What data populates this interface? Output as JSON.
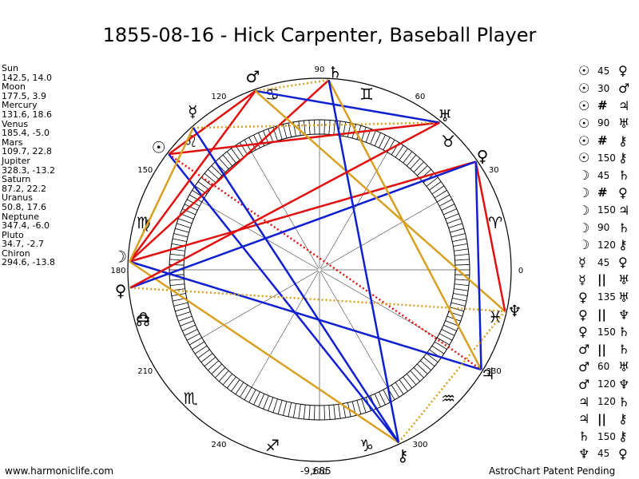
{
  "title": "1855-08-16 - Hick Carpenter, Baseball Player",
  "planets": [
    {
      "name": "Sun",
      "values": "142.5, 14.0",
      "glyph": "☉",
      "lon": 142.5
    },
    {
      "name": "Moon",
      "values": "177.5, 3.9",
      "glyph": "☽",
      "lon": 177.5
    },
    {
      "name": "Mercury",
      "values": "131.6, 18.6",
      "glyph": "☿",
      "lon": 131.6
    },
    {
      "name": "Venus",
      "values": "185.4, -5.0",
      "glyph": "♀",
      "lon": 185.4
    },
    {
      "name": "Mars",
      "values": "109.7, 22.8",
      "glyph": "♂",
      "lon": 109.7
    },
    {
      "name": "Jupiter",
      "values": "328.3, -13.2",
      "glyph": "♃",
      "lon": 328.3
    },
    {
      "name": "Saturn",
      "values": "87.2, 22.2",
      "glyph": "♄",
      "lon": 87.2
    },
    {
      "name": "Uranus",
      "values": "50.8, 17.6",
      "glyph": "♅",
      "lon": 50.8
    },
    {
      "name": "Neptune",
      "values": "347.4, -6.0",
      "glyph": "♆",
      "lon": 347.4
    },
    {
      "name": "Pluto",
      "values": "34.7, -2.7",
      "glyph": "♀",
      "lon": 34.7
    },
    {
      "name": "Chiron",
      "values": "294.6, -13.8",
      "glyph": "⚷",
      "lon": 294.6
    }
  ],
  "aspects": [
    {
      "p1": "☉",
      "label": "45",
      "p2": "♀"
    },
    {
      "p1": "☉",
      "label": "30",
      "p2": "♂"
    },
    {
      "p1": "☉",
      "label": "#",
      "p2": "♃"
    },
    {
      "p1": "☉",
      "label": "90",
      "p2": "♅"
    },
    {
      "p1": "☉",
      "label": "#",
      "p2": "⚷"
    },
    {
      "p1": "☉",
      "label": "150",
      "p2": "⚷"
    },
    {
      "p1": "☽",
      "label": "45",
      "p2": "♄"
    },
    {
      "p1": "☽",
      "label": "#",
      "p2": "♀"
    },
    {
      "p1": "☽",
      "label": "150",
      "p2": "♃"
    },
    {
      "p1": "☽",
      "label": "90",
      "p2": "♄"
    },
    {
      "p1": "☽",
      "label": "120",
      "p2": "⚷"
    },
    {
      "p1": "☿",
      "label": "45",
      "p2": "♀"
    },
    {
      "p1": "☿",
      "label": "||",
      "p2": "♅"
    },
    {
      "p1": "♀",
      "label": "135",
      "p2": "♅"
    },
    {
      "p1": "♀",
      "label": "||",
      "p2": "♆"
    },
    {
      "p1": "♀",
      "label": "150",
      "p2": "♄"
    },
    {
      "p1": "♂",
      "label": "||",
      "p2": "♄"
    },
    {
      "p1": "♂",
      "label": "60",
      "p2": "♅"
    },
    {
      "p1": "♂",
      "label": "120",
      "p2": "♆"
    },
    {
      "p1": "♃",
      "label": "120",
      "p2": "♄"
    },
    {
      "p1": "♃",
      "label": "||",
      "p2": "⚷"
    },
    {
      "p1": "♄",
      "label": "150",
      "p2": "⚷"
    },
    {
      "p1": "♆",
      "label": "45",
      "p2": "♀"
    }
  ],
  "wheel": {
    "degree_labels": [
      "0",
      "30",
      "60",
      "90",
      "120",
      "150",
      "180",
      "210",
      "240",
      "270",
      "300",
      "330"
    ],
    "zodiac": [
      {
        "glyph": "♈",
        "lon": 15
      },
      {
        "glyph": "♉",
        "lon": 45
      },
      {
        "glyph": "♊",
        "lon": 75
      },
      {
        "glyph": "♋",
        "lon": 105
      },
      {
        "glyph": "♌",
        "lon": 135
      },
      {
        "glyph": "♍",
        "lon": 165
      },
      {
        "glyph": "♎",
        "lon": 195
      },
      {
        "glyph": "♏",
        "lon": 225
      },
      {
        "glyph": "♐",
        "lon": 255
      },
      {
        "glyph": "♑",
        "lon": 285
      },
      {
        "glyph": "♒",
        "lon": 315
      },
      {
        "glyph": "♓",
        "lon": 345
      }
    ],
    "node_glyph": "☊",
    "node_lon": 196,
    "colors": {
      "red": "#e01010",
      "blue": "#1020d0",
      "gold": "#d8a020"
    },
    "lines": [
      {
        "a": "Sun",
        "b": "Uranus",
        "style": "red"
      },
      {
        "a": "Sun",
        "b": "Mars",
        "style": "red"
      },
      {
        "a": "Sun",
        "b": "Jupiter",
        "style": "red-dotted"
      },
      {
        "a": "Sun",
        "b": "Chiron",
        "style": "blue"
      },
      {
        "a": "Moon",
        "b": "Mars",
        "style": "red"
      },
      {
        "a": "Moon",
        "b": "Saturn",
        "style": "red"
      },
      {
        "a": "Moon",
        "b": "Pluto",
        "style": "red"
      },
      {
        "a": "Moon",
        "b": "Jupiter",
        "style": "blue"
      },
      {
        "a": "Moon",
        "b": "Mercury",
        "style": "gold"
      },
      {
        "a": "Moon",
        "b": "Chiron",
        "style": "gold"
      },
      {
        "a": "Mercury",
        "b": "Uranus",
        "style": "gold-dotted"
      },
      {
        "a": "Venus",
        "b": "Pluto",
        "style": "blue"
      },
      {
        "a": "Venus",
        "b": "Neptune",
        "style": "gold-dotted"
      },
      {
        "a": "Mars",
        "b": "Uranus",
        "style": "blue"
      },
      {
        "a": "Mars",
        "b": "Saturn",
        "style": "gold-dotted"
      },
      {
        "a": "Mars",
        "b": "Neptune",
        "style": "gold"
      },
      {
        "a": "Saturn",
        "b": "Jupiter",
        "style": "gold"
      },
      {
        "a": "Saturn",
        "b": "Chiron",
        "style": "blue"
      },
      {
        "a": "Pluto",
        "b": "Neptune",
        "style": "red"
      },
      {
        "a": "Pluto",
        "b": "Jupiter",
        "style": "blue"
      },
      {
        "a": "Chiron",
        "b": "Neptune",
        "style": "gold-dotted"
      },
      {
        "a": "Chiron",
        "b": "Mercury",
        "style": "blue"
      },
      {
        "a": "Venus",
        "b": "Uranus",
        "style": "red"
      }
    ]
  },
  "footer": {
    "website": "www.harmoniclife.com",
    "score": "-9,685",
    "patent": "AstroChart Patent Pending"
  }
}
